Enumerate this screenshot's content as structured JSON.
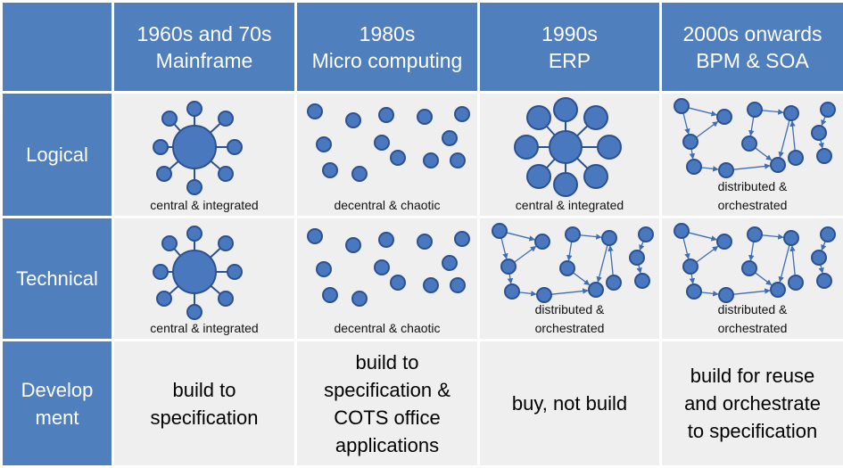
{
  "columns": [
    {
      "line1": "",
      "line2": ""
    },
    {
      "line1": "1960s and 70s",
      "line2": "Mainframe"
    },
    {
      "line1": "1980s",
      "line2": "Micro computing"
    },
    {
      "line1": "1990s",
      "line2": "ERP"
    },
    {
      "line1": "2000s onwards",
      "line2": "BPM & SOA"
    }
  ],
  "rows": [
    {
      "label_lines": [
        "Logical"
      ]
    },
    {
      "label_lines": [
        "Technical"
      ]
    },
    {
      "label_lines": [
        "Develop",
        "ment"
      ]
    }
  ],
  "captions": {
    "central": "central & integrated",
    "decentral": "decentral & chaotic",
    "distributed_1": "distributed &",
    "distributed_2": "orchestrated"
  },
  "development": [
    [
      "build to",
      "specification"
    ],
    [
      "build to",
      "specification &",
      "COTS office",
      "applications"
    ],
    [
      "buy, not build"
    ],
    [
      "build for reuse",
      "and orchestrate",
      "to specification"
    ]
  ],
  "colors": {
    "header_fill": "#4f7fbd",
    "cell_fill": "#efefef",
    "node_fill": "#4a78be",
    "node_stroke": "#2c5191",
    "edge": "#3e6db3"
  }
}
